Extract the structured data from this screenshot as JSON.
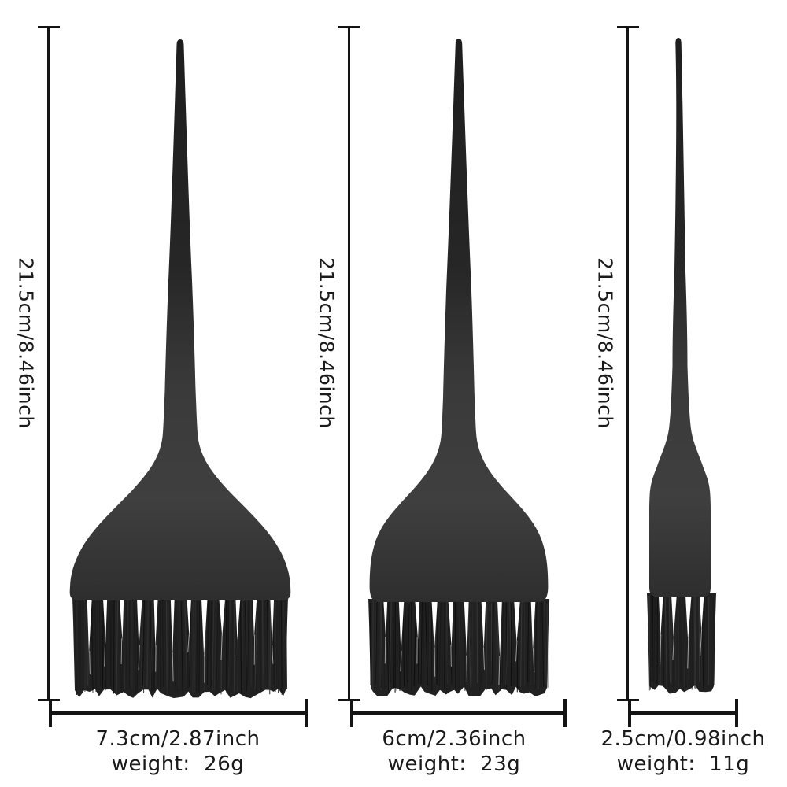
{
  "diagram": {
    "description": "three black hair dye tint brushes with dimension annotations",
    "background": "#ffffff"
  },
  "colors": {
    "dimension_line": "#141414",
    "label_text": "#1a1a1a",
    "brush_paddle": "#3d3d3d",
    "brush_handle": "#242424",
    "bristles": "#212121"
  },
  "brushes": [
    {
      "id": "large",
      "height_label": "21.5cm/8.46inch",
      "width_label": "7.3cm/2.87inch",
      "weight_label": "weight:  26g"
    },
    {
      "id": "medium",
      "height_label": "21.5cm/8.46inch",
      "width_label": "6cm/2.36inch",
      "weight_label": "weight:  23g"
    },
    {
      "id": "small",
      "height_label": "21.5cm/8.46inch",
      "width_label": "2.5cm/0.98inch",
      "weight_label": "weight:  11g"
    }
  ]
}
